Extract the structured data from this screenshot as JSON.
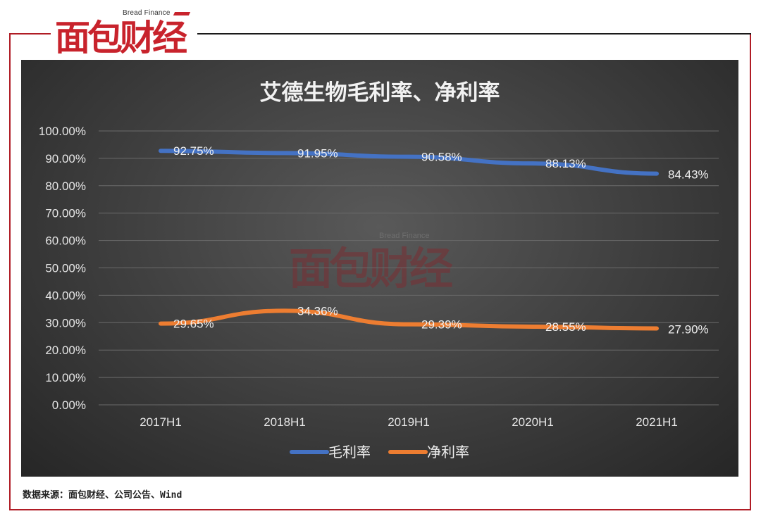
{
  "brand": {
    "name_en": "Bread Finance",
    "name_cn": "面包财经"
  },
  "colors": {
    "frame": "#b01c25",
    "gross_margin": "#4472c4",
    "net_margin": "#ed7d31",
    "panel_bg": "#404040"
  },
  "chart_data": {
    "type": "line",
    "title": "艾德生物毛利率、净利率",
    "categories": [
      "2017H1",
      "2018H1",
      "2019H1",
      "2020H1",
      "2021H1"
    ],
    "y_ticks": [
      "100.00%",
      "90.00%",
      "80.00%",
      "70.00%",
      "60.00%",
      "50.00%",
      "40.00%",
      "30.00%",
      "20.00%",
      "10.00%",
      "0.00%"
    ],
    "ylim": [
      0,
      100
    ],
    "grid": true,
    "legend_position": "bottom",
    "series": [
      {
        "name": "毛利率",
        "values": [
          92.75,
          91.95,
          90.58,
          88.13,
          84.43
        ],
        "labels": [
          "92.75%",
          "91.95%",
          "90.58%",
          "88.13%",
          "84.43%"
        ]
      },
      {
        "name": "净利率",
        "values": [
          29.65,
          34.36,
          29.39,
          28.55,
          27.9
        ],
        "labels": [
          "29.65%",
          "34.36%",
          "29.39%",
          "28.55%",
          "27.90%"
        ]
      }
    ],
    "watermark": {
      "name_en": "Bread Finance",
      "name_cn": "面包财经"
    }
  },
  "source_note": "数据来源：面包财经、公司公告、Wind"
}
